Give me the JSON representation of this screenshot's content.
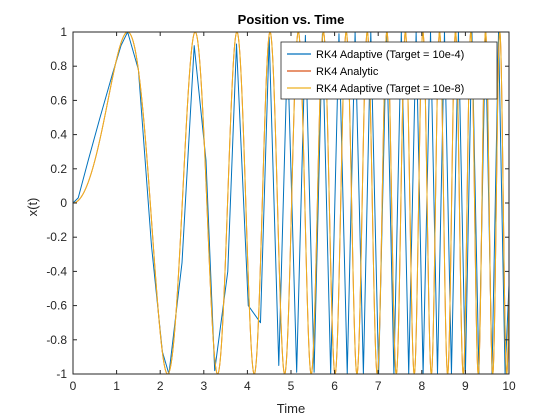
{
  "chart_data": {
    "type": "line",
    "title": "Position vs. Time",
    "xlabel": "Time",
    "ylabel": "x(t)",
    "xlim": [
      0,
      10
    ],
    "ylim": [
      -1,
      1
    ],
    "xticks": [
      0,
      1,
      2,
      3,
      4,
      5,
      6,
      7,
      8,
      9,
      10
    ],
    "xtick_labels": [
      "0",
      "1",
      "2",
      "3",
      "4",
      "5",
      "6",
      "7",
      "8",
      "9",
      "10"
    ],
    "yticks": [
      -1,
      -0.8,
      -0.6,
      -0.4,
      -0.2,
      0,
      0.2,
      0.4,
      0.6,
      0.8,
      1
    ],
    "ytick_labels": [
      "-1",
      "-0.8",
      "-0.6",
      "-0.4",
      "-0.2",
      "0",
      "0.2",
      "0.4",
      "0.6",
      "0.8",
      "1"
    ],
    "grid": false,
    "legend_location": "top-right",
    "series": [
      {
        "name": "RK4 Adaptive (Target = 10e-4)",
        "color": "#0072BD",
        "style": "coarse-adaptive",
        "t": [
          0,
          0.12,
          0.35,
          0.62,
          0.9,
          1.1,
          1.253,
          1.5,
          1.8,
          2.05,
          2.2,
          2.5,
          2.78,
          3.05,
          3.25,
          3.55,
          3.75,
          4.02,
          4.3,
          4.5,
          4.72,
          4.92,
          5.13,
          5.33,
          5.53,
          5.72,
          5.91,
          6.1,
          6.29,
          6.47,
          6.66,
          6.83,
          7.01,
          7.19,
          7.36,
          7.53,
          7.7,
          7.87,
          8.03,
          8.2,
          8.36,
          8.52,
          8.68,
          8.84,
          9.0,
          9.15,
          9.31,
          9.46,
          9.61,
          9.76,
          9.91,
          10.0
        ],
        "x": [
          0,
          0.03,
          0.25,
          0.5,
          0.75,
          0.92,
          1.0,
          0.78,
          -0.25,
          -0.87,
          -1.0,
          -0.35,
          0.92,
          0.25,
          -0.98,
          -0.4,
          0.93,
          -0.6,
          -0.7,
          0.97,
          -0.95,
          0.9,
          -0.99,
          0.98,
          -0.99,
          0.99,
          -1.0,
          0.99,
          -1.0,
          1.0,
          -1.0,
          1.0,
          -1.0,
          1.0,
          -1.0,
          1.0,
          -1.0,
          1.0,
          -1.0,
          1.0,
          -1.0,
          1.0,
          -1.0,
          1.0,
          -1.0,
          1.0,
          -1.0,
          1.0,
          -1.0,
          1.0,
          -1.0,
          -0.48
        ]
      },
      {
        "name": "RK4 Analytic",
        "color": "#D95319",
        "style": "analytic",
        "formula": "x(t) = sin(t^2)",
        "t_start": 0,
        "t_end": 10
      },
      {
        "name": "RK4 Adaptive (Target = 10e-8)",
        "color": "#EDB120",
        "style": "fine-adaptive",
        "formula": "x(t) = sin(t^2)",
        "t_start": 0,
        "t_end": 10
      }
    ]
  }
}
